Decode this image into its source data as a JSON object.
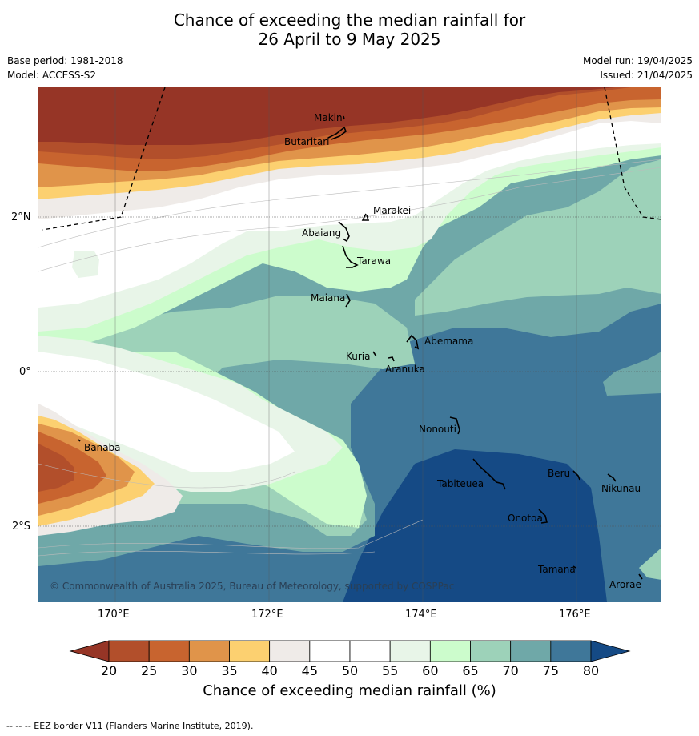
{
  "title_line1": "Chance of exceeding the median rainfall for",
  "title_line2": "26 April to 9 May 2025",
  "base_period": "Base period: 1981-2018",
  "model": "Model: ACCESS-S2",
  "model_run": "Model run: 19/04/2025",
  "issued": "Issued: 21/04/2025",
  "map": {
    "lat_labels": [
      "2°N",
      "0°",
      "2°S"
    ],
    "lon_labels": [
      "170°E",
      "172°E",
      "174°E",
      "176°E"
    ],
    "places": {
      "makin": "Makin",
      "butaritari": "Butaritari",
      "marakei": "Marakei",
      "abaiang": "Abaiang",
      "tarawa": "Tarawa",
      "maiana": "Maiana",
      "abemama": "Abemama",
      "kuria": "Kuria",
      "aranuka": "Aranuka",
      "banaba": "Banaba",
      "nonouti": "Nonouti",
      "beru": "Beru",
      "tabiteuea": "Tabiteuea",
      "nikunau": "Nikunau",
      "onotoa": "Onotoa",
      "tamana": "Tamana",
      "arorae": "Arorae"
    },
    "copyright": "© Commonwealth of Australia 2025, Bureau of Meteorology, supported by COSPPac"
  },
  "colorbar": {
    "ticks": [
      "20",
      "25",
      "30",
      "35",
      "40",
      "45",
      "50",
      "55",
      "60",
      "65",
      "70",
      "75",
      "80"
    ],
    "colors": [
      "#b24f2b",
      "#c8642f",
      "#e0944a",
      "#fcd070",
      "#efebe8",
      "#ffffff",
      "#ffffff",
      "#e8f5e8",
      "#ccfccc",
      "#9dd2b9",
      "#6fa8a8",
      "#3f7799"
    ],
    "under_color": "#963526",
    "over_color": "#154a85",
    "label": "Chance of exceeding median rainfall (%)"
  },
  "footer": "--  --  -- EEZ border V11 (Flanders Marine Institute, 2019)."
}
